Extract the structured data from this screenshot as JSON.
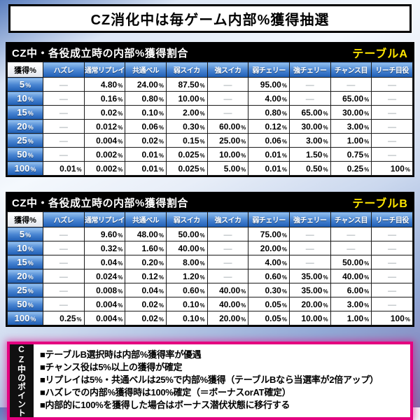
{
  "page_title": "CZ消化中は毎ゲーム内部%獲得抽選",
  "chart_data": [
    {
      "type": "table",
      "title": "CZ中・各役成立時の内部%獲得割合",
      "table_label": "テーブルA",
      "columns": [
        "獲得%",
        "ハズレ",
        "通常リプレイ",
        "共通ベル",
        "弱スイカ",
        "強スイカ",
        "弱チェリー",
        "強チェリー",
        "チャンス目",
        "リーチ目役"
      ],
      "rows": [
        {
          "label": "5%",
          "cells": [
            "—",
            "4.80%",
            "24.00%",
            "87.50%",
            "—",
            "95.00%",
            "—",
            "—",
            "—"
          ]
        },
        {
          "label": "10%",
          "cells": [
            "—",
            "0.16%",
            "0.80%",
            "10.00%",
            "—",
            "4.00%",
            "—",
            "65.00%",
            "—"
          ]
        },
        {
          "label": "15%",
          "cells": [
            "—",
            "0.02%",
            "0.10%",
            "2.00%",
            "—",
            "0.80%",
            "65.00%",
            "30.00%",
            "—"
          ]
        },
        {
          "label": "20%",
          "cells": [
            "—",
            "0.012%",
            "0.06%",
            "0.30%",
            "60.00%",
            "0.12%",
            "30.00%",
            "3.00%",
            "—"
          ]
        },
        {
          "label": "25%",
          "cells": [
            "—",
            "0.004%",
            "0.02%",
            "0.15%",
            "25.00%",
            "0.06%",
            "3.00%",
            "1.00%",
            "—"
          ]
        },
        {
          "label": "50%",
          "cells": [
            "—",
            "0.002%",
            "0.01%",
            "0.025%",
            "10.00%",
            "0.01%",
            "1.50%",
            "0.75%",
            "—"
          ]
        },
        {
          "label": "100%",
          "cells": [
            "0.01%",
            "0.002%",
            "0.01%",
            "0.025%",
            "5.00%",
            "0.01%",
            "0.50%",
            "0.25%",
            "100%"
          ]
        }
      ]
    },
    {
      "type": "table",
      "title": "CZ中・各役成立時の内部%獲得割合",
      "table_label": "テーブルB",
      "columns": [
        "獲得%",
        "ハズレ",
        "通常リプレイ",
        "共通ベル",
        "弱スイカ",
        "強スイカ",
        "弱チェリー",
        "強チェリー",
        "チャンス目",
        "リーチ目役"
      ],
      "rows": [
        {
          "label": "5%",
          "cells": [
            "—",
            "9.60%",
            "48.00%",
            "50.00%",
            "—",
            "75.00%",
            "—",
            "—",
            "—"
          ]
        },
        {
          "label": "10%",
          "cells": [
            "—",
            "0.32%",
            "1.60%",
            "40.00%",
            "—",
            "20.00%",
            "—",
            "—",
            "—"
          ]
        },
        {
          "label": "15%",
          "cells": [
            "—",
            "0.04%",
            "0.20%",
            "8.00%",
            "—",
            "4.00%",
            "—",
            "50.00%",
            "—"
          ]
        },
        {
          "label": "20%",
          "cells": [
            "—",
            "0.024%",
            "0.12%",
            "1.20%",
            "—",
            "0.60%",
            "35.00%",
            "40.00%",
            "—"
          ]
        },
        {
          "label": "25%",
          "cells": [
            "—",
            "0.008%",
            "0.04%",
            "0.60%",
            "40.00%",
            "0.30%",
            "35.00%",
            "6.00%",
            "—"
          ]
        },
        {
          "label": "50%",
          "cells": [
            "—",
            "0.004%",
            "0.02%",
            "0.10%",
            "40.00%",
            "0.05%",
            "20.00%",
            "3.00%",
            "—"
          ]
        },
        {
          "label": "100%",
          "cells": [
            "0.25%",
            "0.004%",
            "0.02%",
            "0.10%",
            "20.00%",
            "0.05%",
            "10.00%",
            "1.00%",
            "100%"
          ]
        }
      ]
    }
  ],
  "points": {
    "vertical_title": "CZ中のポイント",
    "items": [
      "■テーブルB選択時は内部%獲得率が優遇",
      "■チャンス役は5%以上の獲得が確定",
      "■リプレイは5%・共通ベルは25%で内部%獲得（テーブルBなら当選率が2倍アップ）",
      "■ハズレでの内部%獲得時は100%確定（＝ボーナスorAT確定）",
      "■内部的に100%を獲得した場合はボーナス潜伏状態に移行する"
    ]
  },
  "colors": {
    "table_label_yellow": "#ffe600",
    "header_blue": "#2e6fc2",
    "section_bar_black": "#000000",
    "points_border_magenta": "#e4007f",
    "dash_gray": "#9aa0a6"
  }
}
